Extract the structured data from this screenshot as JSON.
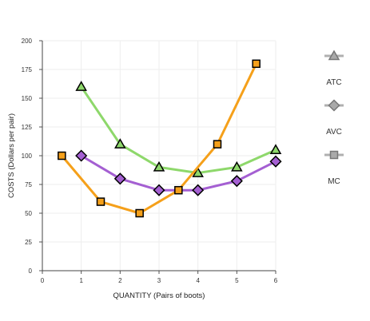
{
  "chart_data": {
    "type": "line",
    "xlabel": "QUANTITY (Pairs of boots)",
    "ylabel": "COSTS (Dollars per pair)",
    "xlim": [
      0,
      6
    ],
    "ylim": [
      0,
      200
    ],
    "xticks": [
      0,
      1,
      2,
      3,
      4,
      5,
      6
    ],
    "yticks": [
      0,
      25,
      50,
      75,
      100,
      125,
      150,
      175,
      200
    ],
    "grid": true,
    "legend_position": "right",
    "series": [
      {
        "name": "ATC",
        "color": "#8ed86b",
        "marker": "triangle",
        "points": [
          [
            1,
            160
          ],
          [
            2,
            110
          ],
          [
            3,
            90
          ],
          [
            4,
            85
          ],
          [
            5,
            90
          ],
          [
            6,
            105
          ]
        ]
      },
      {
        "name": "AVC",
        "color": "#a45fd2",
        "marker": "diamond",
        "points": [
          [
            1,
            100
          ],
          [
            2,
            80
          ],
          [
            3,
            70
          ],
          [
            4,
            70
          ],
          [
            5,
            78
          ],
          [
            6,
            95
          ]
        ]
      },
      {
        "name": "MC",
        "color": "#f5a01a",
        "marker": "square",
        "points": [
          [
            0.5,
            100
          ],
          [
            1.5,
            60
          ],
          [
            2.5,
            50
          ],
          [
            3.5,
            70
          ],
          [
            4.5,
            110
          ],
          [
            5.5,
            180
          ]
        ]
      }
    ]
  }
}
